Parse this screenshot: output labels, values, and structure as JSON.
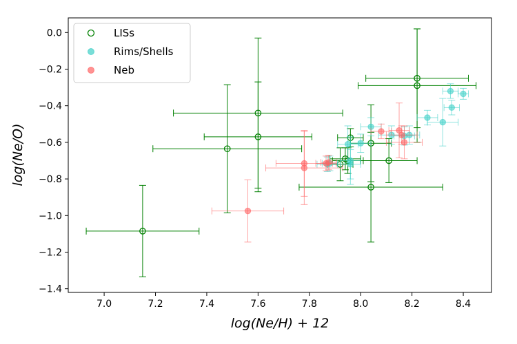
{
  "chart_data": {
    "type": "scatter",
    "title": "",
    "xlabel": "log(Ne/H) + 12",
    "ylabel": "log(Ne/O)",
    "xlim": [
      6.86,
      8.51
    ],
    "ylim": [
      -1.42,
      0.08
    ],
    "xticks": [
      7.0,
      7.2,
      7.4,
      7.6,
      7.8,
      8.0,
      8.2,
      8.4
    ],
    "yticks": [
      0.0,
      -0.2,
      -0.4,
      -0.6,
      -0.8,
      -1.0,
      -1.2,
      -1.4
    ],
    "xtick_labels": [
      "7.0",
      "7.2",
      "7.4",
      "7.6",
      "7.8",
      "8.0",
      "8.2",
      "8.4"
    ],
    "ytick_labels": [
      "0.0",
      "−0.2",
      "−0.4",
      "−0.6",
      "−0.8",
      "−1.0",
      "−1.2",
      "−1.4"
    ],
    "legend_position": "top-left",
    "series": [
      {
        "name": "LISs",
        "marker": "open-circle",
        "color": "#008000",
        "points": [
          {
            "x": 7.15,
            "y": -1.085,
            "xerr": 0.22,
            "yerr": 0.25
          },
          {
            "x": 7.48,
            "y": -0.635,
            "xerr": 0.29,
            "yerr": 0.35
          },
          {
            "x": 7.6,
            "y": -0.44,
            "xerr": 0.33,
            "yerr": 0.41
          },
          {
            "x": 7.6,
            "y": -0.57,
            "xerr": 0.21,
            "yerr": 0.3
          },
          {
            "x": 7.94,
            "y": -0.69,
            "xerr": 0.06,
            "yerr": 0.06
          },
          {
            "x": 7.96,
            "y": -0.575,
            "xerr": 0.05,
            "yerr": 0.05
          },
          {
            "x": 7.95,
            "y": -0.7,
            "xerr": 0.06,
            "yerr": 0.07
          },
          {
            "x": 8.04,
            "y": -0.845,
            "xerr": 0.28,
            "yerr": 0.3
          },
          {
            "x": 8.04,
            "y": -0.605,
            "xerr": 0.08,
            "yerr": 0.21
          },
          {
            "x": 8.11,
            "y": -0.7,
            "xerr": 0.11,
            "yerr": 0.12
          },
          {
            "x": 8.22,
            "y": -0.25,
            "xerr": 0.2,
            "yerr": 0.27
          },
          {
            "x": 8.22,
            "y": -0.29,
            "xerr": 0.23,
            "yerr": 0.31
          },
          {
            "x": 7.92,
            "y": -0.72,
            "xerr": 0.05,
            "yerr": 0.09
          }
        ]
      },
      {
        "name": "Rims/Shells",
        "marker": "filled-circle",
        "color": "#40d0c8",
        "points": [
          {
            "x": 7.87,
            "y": -0.72,
            "xerr": 0.04,
            "yerr": 0.04
          },
          {
            "x": 7.88,
            "y": -0.715,
            "xerr": 0.03,
            "yerr": 0.04
          },
          {
            "x": 7.95,
            "y": -0.61,
            "xerr": 0.04,
            "yerr": 0.1
          },
          {
            "x": 7.96,
            "y": -0.72,
            "xerr": 0.04,
            "yerr": 0.08
          },
          {
            "x": 7.96,
            "y": -0.7,
            "xerr": 0.04,
            "yerr": 0.13
          },
          {
            "x": 8.0,
            "y": -0.605,
            "xerr": 0.04,
            "yerr": 0.05
          },
          {
            "x": 8.04,
            "y": -0.515,
            "xerr": 0.04,
            "yerr": 0.05
          },
          {
            "x": 8.12,
            "y": -0.56,
            "xerr": 0.05,
            "yerr": 0.05
          },
          {
            "x": 8.17,
            "y": -0.565,
            "xerr": 0.04,
            "yerr": 0.05
          },
          {
            "x": 8.19,
            "y": -0.56,
            "xerr": 0.04,
            "yerr": 0.05
          },
          {
            "x": 8.26,
            "y": -0.465,
            "xerr": 0.04,
            "yerr": 0.04
          },
          {
            "x": 8.32,
            "y": -0.49,
            "xerr": 0.06,
            "yerr": 0.13
          },
          {
            "x": 8.35,
            "y": -0.32,
            "xerr": 0.03,
            "yerr": 0.04
          },
          {
            "x": 8.355,
            "y": -0.41,
            "xerr": 0.03,
            "yerr": 0.04
          },
          {
            "x": 8.4,
            "y": -0.335,
            "xerr": 0.02,
            "yerr": 0.03
          }
        ]
      },
      {
        "name": "Neb",
        "marker": "filled-circle",
        "color": "#ff6464",
        "points": [
          {
            "x": 7.56,
            "y": -0.975,
            "xerr": 0.14,
            "yerr": 0.17
          },
          {
            "x": 7.78,
            "y": -0.74,
            "xerr": 0.15,
            "yerr": 0.2
          },
          {
            "x": 7.78,
            "y": -0.715,
            "xerr": 0.11,
            "yerr": 0.18
          },
          {
            "x": 7.865,
            "y": -0.715,
            "xerr": 0.04,
            "yerr": 0.04
          },
          {
            "x": 7.875,
            "y": -0.71,
            "xerr": 0.03,
            "yerr": 0.04
          },
          {
            "x": 8.08,
            "y": -0.54,
            "xerr": 0.04,
            "yerr": 0.04
          },
          {
            "x": 8.15,
            "y": -0.535,
            "xerr": 0.04,
            "yerr": 0.15
          },
          {
            "x": 8.16,
            "y": -0.56,
            "xerr": 0.06,
            "yerr": 0.05
          },
          {
            "x": 8.17,
            "y": -0.6,
            "xerr": 0.07,
            "yerr": 0.09
          }
        ]
      }
    ]
  }
}
